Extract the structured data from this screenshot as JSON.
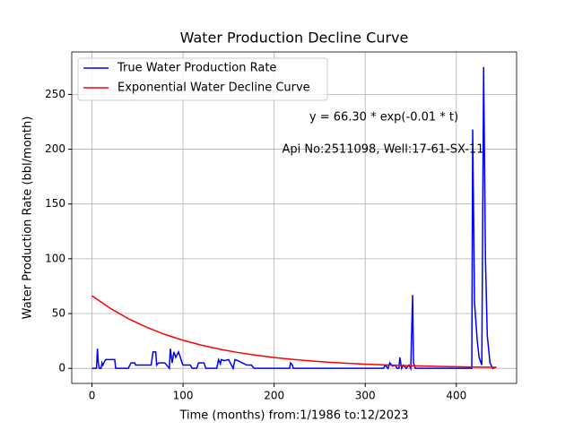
{
  "chart_data": {
    "type": "line",
    "title": "Water Production Decline Curve",
    "x_label": "Time (months) from:1/1986 to:12/2023",
    "y_label": "Water Production Rate (bbl/month)",
    "annotations": [
      "y = 66.30 * exp(-0.01 * t)",
      "Api No:2511098, Well:17-61-SX-11"
    ],
    "xlim": [
      -22.2,
      466.2
    ],
    "ylim": [
      -13.75,
      288.75
    ],
    "xticks": [
      0,
      100,
      200,
      300,
      400
    ],
    "yticks": [
      0,
      50,
      100,
      150,
      200,
      250
    ],
    "grid": true,
    "legend": "upper left",
    "series": [
      {
        "name": "True Water Production Rate",
        "color": "#0000ff",
        "x": [
          0,
          5,
          6,
          7,
          8,
          10,
          11,
          12,
          13,
          15,
          17,
          25,
          26,
          40,
          41,
          43,
          47,
          48,
          65,
          67,
          70,
          71,
          73,
          80,
          85,
          86,
          88,
          90,
          92,
          95,
          99,
          100,
          102,
          108,
          110,
          115,
          117,
          123,
          125,
          137,
          139,
          141,
          142,
          145,
          150,
          155,
          157,
          160,
          165,
          170,
          175,
          178,
          180,
          217,
          218,
          220,
          221,
          230,
          320,
          322,
          325,
          327,
          330,
          333,
          335,
          337,
          338,
          340,
          342,
          345,
          348,
          350,
          352,
          353,
          355,
          357,
          410,
          417,
          418,
          420,
          423,
          425,
          428,
          430,
          432,
          434,
          437,
          440,
          444
        ],
        "values": [
          0,
          0,
          18,
          5,
          0,
          0,
          5,
          3,
          5,
          8,
          8,
          8,
          0,
          0,
          2,
          5,
          5,
          3,
          3,
          15,
          15,
          3,
          5,
          5,
          0,
          18,
          5,
          15,
          10,
          15,
          5,
          3,
          3,
          3,
          0,
          0,
          5,
          5,
          0,
          0,
          8,
          4,
          8,
          7,
          8,
          0,
          8,
          7,
          5,
          3,
          3,
          0,
          0,
          0,
          5,
          3,
          0,
          0,
          0,
          3,
          0,
          5,
          2,
          3,
          0,
          0,
          10,
          0,
          3,
          0,
          3,
          0,
          67,
          5,
          0,
          0,
          0,
          0,
          218,
          60,
          25,
          10,
          3,
          275,
          100,
          30,
          5,
          0,
          1
        ]
      },
      {
        "name": "Exponential Water Decline Curve",
        "color": "#ff0000",
        "x": [
          0,
          20,
          40,
          60,
          80,
          100,
          120,
          140,
          160,
          180,
          200,
          220,
          240,
          260,
          280,
          300,
          320,
          340,
          360,
          380,
          400,
          420,
          440,
          444
        ],
        "values": [
          66.3,
          54.8,
          45.3,
          37.5,
          31.0,
          25.6,
          21.2,
          17.5,
          14.5,
          12.0,
          9.9,
          8.2,
          6.8,
          5.6,
          4.6,
          3.8,
          3.2,
          2.6,
          2.2,
          1.8,
          1.5,
          1.2,
          1.0,
          1.0
        ]
      }
    ]
  }
}
